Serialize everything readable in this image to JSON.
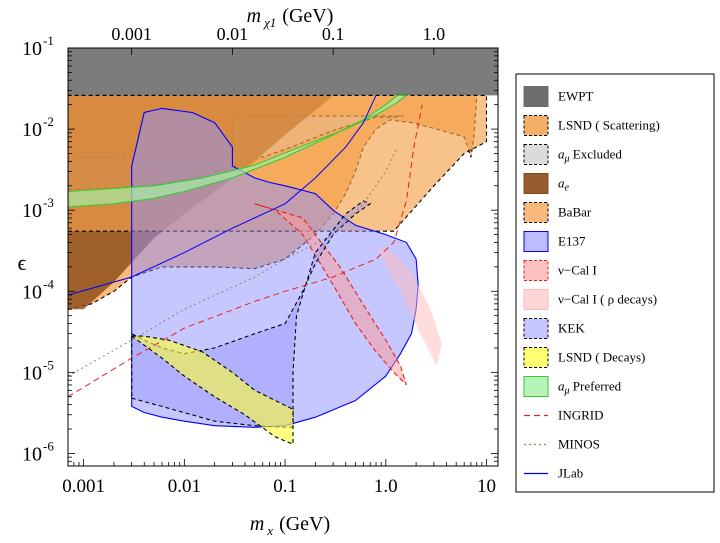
{
  "chart_data": {
    "type": "area",
    "title": "",
    "xlabel": {
      "main": "m",
      "sub": "x",
      "unit": "(GeV)"
    },
    "x2label": {
      "main": "m",
      "sub": "χ1",
      "unit": "(GeV)"
    },
    "ylabel": "ϵ",
    "xscale": "log",
    "yscale": "log",
    "xlim": [
      0.0007,
      13
    ],
    "ylim": [
      7e-07,
      0.1
    ],
    "x_ticks": [
      {
        "value": 0.001,
        "label": "0.001"
      },
      {
        "value": 0.01,
        "label": "0.01"
      },
      {
        "value": 0.1,
        "label": "0.1"
      },
      {
        "value": 1,
        "label": "1.0"
      },
      {
        "value": 10,
        "label": "10"
      }
    ],
    "x2_ticks": [
      {
        "value": 0.003,
        "label": "0.001"
      },
      {
        "value": 0.03,
        "label": "0.01"
      },
      {
        "value": 0.3,
        "label": "0.1"
      },
      {
        "value": 3,
        "label": "1.0"
      }
    ],
    "y_ticks": [
      {
        "value": 1e-06,
        "exp": "-6"
      },
      {
        "value": 1e-05,
        "exp": "-5"
      },
      {
        "value": 0.0001,
        "exp": "-4"
      },
      {
        "value": 0.001,
        "exp": "-3"
      },
      {
        "value": 0.01,
        "exp": "-2"
      },
      {
        "value": 0.1,
        "exp": "-1"
      }
    ],
    "grid": false,
    "legend_position": "right",
    "series": [
      {
        "name": "EWPT",
        "style": "fill",
        "fill": "#6e6e6e",
        "opacity": 0.9,
        "stroke": "none",
        "points": [
          [
            0.0007,
            0.026
          ],
          [
            13,
            0.026
          ],
          [
            13,
            0.1
          ],
          [
            0.0007,
            0.1
          ]
        ]
      },
      {
        "name": "LSND ( Scattering)",
        "style": "fill",
        "fill": "#f5a14d",
        "opacity": 0.75,
        "stroke": "#000",
        "dash": "4 3",
        "points": [
          [
            0.0007,
            6e-05
          ],
          [
            0.0012,
            7e-05
          ],
          [
            0.002,
            0.0001
          ],
          [
            0.003,
            0.00015
          ],
          [
            0.006,
            0.0002
          ],
          [
            0.02,
            0.0002
          ],
          [
            0.05,
            0.00019
          ],
          [
            0.1,
            0.00025
          ],
          [
            0.2,
            0.0005
          ],
          [
            0.3,
            0.0009
          ],
          [
            0.4,
            0.0016
          ],
          [
            0.5,
            0.003
          ],
          [
            0.6,
            0.006
          ],
          [
            0.8,
            0.01
          ],
          [
            1.1,
            0.013
          ],
          [
            1.8,
            0.012
          ],
          [
            3.2,
            0.01
          ],
          [
            6,
            0.008
          ],
          [
            7,
            0.0045
          ],
          [
            7.5,
            0.008
          ],
          [
            8,
            0.026
          ],
          [
            0.0007,
            0.026
          ]
        ]
      },
      {
        "name": "a_μ Excluded",
        "style": "fill",
        "fill": "#d9d9d9",
        "opacity": 0.85,
        "stroke": "#000",
        "dash": "4 3",
        "points": [
          [
            0.0007,
            0.0018
          ],
          [
            0.002,
            0.0019
          ],
          [
            0.005,
            0.0021
          ],
          [
            0.01,
            0.0024
          ],
          [
            0.03,
            0.0034
          ],
          [
            0.1,
            0.0056
          ],
          [
            0.3,
            0.0096
          ],
          [
            0.8,
            0.014
          ],
          [
            1.2,
            0.014
          ],
          [
            1.5,
            0.0145
          ],
          [
            0.03,
            0.0145
          ],
          [
            0.03,
            0.0045
          ],
          [
            0.0007,
            0.0045
          ]
        ]
      },
      {
        "name": "a_e",
        "style": "fill",
        "fill": "#8a4a16",
        "opacity": 0.8,
        "stroke": "none",
        "points": [
          [
            0.0007,
            6e-05
          ],
          [
            0.001,
            6e-05
          ],
          [
            0.002,
            0.00013
          ],
          [
            0.005,
            0.00045
          ],
          [
            0.01,
            0.0009
          ],
          [
            0.02,
            0.0017
          ],
          [
            0.03,
            0.0025
          ],
          [
            0.05,
            0.004
          ],
          [
            0.1,
            0.0085
          ],
          [
            0.2,
            0.017
          ],
          [
            0.3,
            0.026
          ],
          [
            0.0007,
            0.026
          ]
        ]
      },
      {
        "name": "BaBar",
        "style": "fill",
        "fill": "#f5a14d",
        "opacity": 0.65,
        "stroke": "#000",
        "dash": "4 3",
        "points": [
          [
            0.0007,
            0.00055
          ],
          [
            1.2,
            0.00055
          ],
          [
            3,
            0.002
          ],
          [
            6,
            0.005
          ],
          [
            10,
            0.007
          ],
          [
            10,
            0.026
          ],
          [
            0.0007,
            0.026
          ]
        ]
      },
      {
        "name": "E137",
        "style": "fill",
        "fill": "#8f8fff",
        "opacity": 0.5,
        "stroke": "#0000ff",
        "dash": "",
        "points": [
          [
            0.003,
            3.8e-06
          ],
          [
            0.004,
            3.2e-06
          ],
          [
            0.006,
            2.8e-06
          ],
          [
            0.01,
            2.5e-06
          ],
          [
            0.02,
            2.2e-06
          ],
          [
            0.05,
            2.1e-06
          ],
          [
            0.1,
            2.2e-06
          ],
          [
            0.2,
            2.8e-06
          ],
          [
            0.5,
            4.5e-06
          ],
          [
            1,
            9e-06
          ],
          [
            1.4,
            1.7e-05
          ],
          [
            1.8,
            3e-05
          ],
          [
            2,
            6e-05
          ],
          [
            2.1,
            0.00012
          ],
          [
            2,
            0.00025
          ],
          [
            1.6,
            0.0004
          ],
          [
            1,
            0.0005
          ],
          [
            0.5,
            0.00065
          ],
          [
            0.3,
            0.001
          ],
          [
            0.2,
            0.0016
          ],
          [
            0.1,
            0.002
          ],
          [
            0.07,
            0.0022
          ],
          [
            0.05,
            0.0025
          ],
          [
            0.03,
            0.0035
          ],
          [
            0.03,
            0.006
          ],
          [
            0.02,
            0.012
          ],
          [
            0.012,
            0.016
          ],
          [
            0.006,
            0.018
          ],
          [
            0.004,
            0.016
          ],
          [
            0.003,
            0.0035
          ]
        ]
      },
      {
        "name": "ν−Cal I",
        "style": "fill",
        "fill": "#ff9999",
        "opacity": 0.5,
        "stroke": "#e2231a",
        "dash": "5 3",
        "points": [
          [
            0.05,
            0.0012
          ],
          [
            0.08,
            0.001
          ],
          [
            0.15,
            0.0005
          ],
          [
            0.3,
            0.00012
          ],
          [
            0.5,
            4e-05
          ],
          [
            0.8,
            1.8e-05
          ],
          [
            1.2,
            1e-05
          ],
          [
            1.6,
            7e-06
          ],
          [
            1.4,
            1.2e-05
          ],
          [
            1,
            2.5e-05
          ],
          [
            0.7,
            5e-05
          ],
          [
            0.35,
            0.0002
          ],
          [
            0.15,
            0.0008
          ]
        ]
      },
      {
        "name": "ν−Cal I ( ρ decays)",
        "style": "fill",
        "fill": "#ffbbbb",
        "opacity": 0.5,
        "stroke": "none",
        "points": [
          [
            0.8,
            0.00035
          ],
          [
            1.4,
            0.0001
          ],
          [
            2.2,
            3e-05
          ],
          [
            3.2,
            1.2e-05
          ],
          [
            3.6,
            2.2e-05
          ],
          [
            2.8,
            6e-05
          ],
          [
            1.8,
            0.00017
          ],
          [
            1.2,
            0.0003
          ]
        ]
      },
      {
        "name": "KEK",
        "style": "fill",
        "fill": "#8f8fff",
        "opacity": 0.4,
        "stroke": "#000",
        "dash": "4 3",
        "points": [
          [
            0.003,
            4.8e-06
          ],
          [
            0.006,
            3.8e-06
          ],
          [
            0.02,
            2.5e-06
          ],
          [
            0.05,
            2.2e-06
          ],
          [
            0.1,
            2.1e-06
          ],
          [
            0.12,
            2.1e-06
          ],
          [
            0.12,
            1e-05
          ],
          [
            0.13,
            5e-05
          ],
          [
            0.2,
            0.0003
          ],
          [
            0.4,
            0.0009
          ],
          [
            0.6,
            0.0013
          ],
          [
            0.7,
            0.0012
          ],
          [
            0.5,
            0.0009
          ],
          [
            0.3,
            0.0005
          ],
          [
            0.2,
            0.00022
          ],
          [
            0.15,
            0.0001
          ],
          [
            0.1,
            4e-05
          ],
          [
            0.05,
            3e-05
          ],
          [
            0.02,
            2e-05
          ],
          [
            0.01,
            1.7e-05
          ],
          [
            0.006,
            2e-05
          ],
          [
            0.004,
            2.5e-05
          ],
          [
            0.003,
            3e-05
          ]
        ]
      },
      {
        "name": "LSND ( Decays)",
        "style": "fill",
        "fill": "#ffff33",
        "opacity": 0.6,
        "stroke": "#000",
        "dash": "4 3",
        "points": [
          [
            0.003,
            2.8e-05
          ],
          [
            0.006,
            1.5e-05
          ],
          [
            0.01,
            9e-06
          ],
          [
            0.02,
            5e-06
          ],
          [
            0.04,
            3e-06
          ],
          [
            0.08,
            1.6e-06
          ],
          [
            0.12,
            1.3e-06
          ],
          [
            0.12,
            3.5e-06
          ],
          [
            0.08,
            4.5e-06
          ],
          [
            0.05,
            6e-06
          ],
          [
            0.03,
            1e-05
          ],
          [
            0.015,
            1.8e-05
          ],
          [
            0.007,
            2.5e-05
          ],
          [
            0.004,
            2.8e-05
          ]
        ]
      },
      {
        "name": "a_μ Preferred",
        "style": "fill",
        "fill": "#a6f0a6",
        "opacity": 0.7,
        "stroke": "#33cc33",
        "dash": "",
        "points": [
          [
            0.0007,
            0.0011
          ],
          [
            0.002,
            0.0012
          ],
          [
            0.005,
            0.0014
          ],
          [
            0.01,
            0.0017
          ],
          [
            0.03,
            0.0025
          ],
          [
            0.1,
            0.0045
          ],
          [
            0.3,
            0.0085
          ],
          [
            0.6,
            0.013
          ],
          [
            1,
            0.02
          ],
          [
            1.3,
            0.026
          ],
          [
            1.6,
            0.026
          ],
          [
            1.2,
            0.02
          ],
          [
            0.8,
            0.015
          ],
          [
            0.4,
            0.01
          ],
          [
            0.15,
            0.0062
          ],
          [
            0.05,
            0.0036
          ],
          [
            0.015,
            0.0025
          ],
          [
            0.005,
            0.002
          ],
          [
            0.0007,
            0.0017
          ]
        ]
      },
      {
        "name": "INGRID",
        "style": "line",
        "stroke": "#e2231a",
        "dash": "6 4",
        "width": 1,
        "points": [
          [
            0.0007,
            5e-06
          ],
          [
            0.003,
            1.5e-05
          ],
          [
            0.01,
            3.5e-05
          ],
          [
            0.05,
            7.5e-05
          ],
          [
            0.1,
            0.0001
          ],
          [
            0.3,
            0.00015
          ],
          [
            0.8,
            0.00025
          ],
          [
            1.2,
            0.0004
          ],
          [
            1.6,
            0.0013
          ],
          [
            1.9,
            0.006
          ],
          [
            2.3,
            0.02
          ]
        ]
      },
      {
        "name": "MINOS",
        "style": "line",
        "stroke": "#8a8a5a",
        "dash": "2 3",
        "width": 1,
        "points": [
          [
            0.0007,
            9e-06
          ],
          [
            0.003,
            2.5e-05
          ],
          [
            0.01,
            6e-05
          ],
          [
            0.05,
            0.00015
          ],
          [
            0.1,
            0.00025
          ],
          [
            0.3,
            0.0005
          ],
          [
            0.6,
            0.0012
          ],
          [
            1,
            0.003
          ],
          [
            1.3,
            0.006
          ]
        ]
      },
      {
        "name": "JLab",
        "style": "line",
        "stroke": "#0000ff",
        "dash": "",
        "width": 1,
        "points": [
          [
            0.0007,
            9e-05
          ],
          [
            0.003,
            0.00015
          ],
          [
            0.01,
            0.0003
          ],
          [
            0.03,
            0.0006
          ],
          [
            0.1,
            0.0012
          ],
          [
            0.2,
            0.0025
          ],
          [
            0.4,
            0.006
          ],
          [
            0.6,
            0.012
          ],
          [
            0.8,
            0.026
          ]
        ]
      }
    ]
  }
}
